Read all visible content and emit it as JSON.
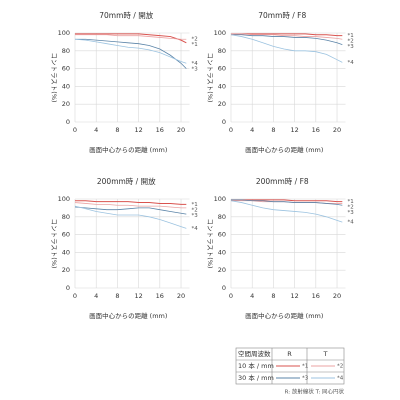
{
  "chart_data": [
    {
      "type": "line",
      "title": "70mm時 / 開放",
      "xlabel": "画面中心からの距離 (mm)",
      "ylabel": "コントラスト(%)",
      "x": [
        0,
        2,
        4,
        6,
        8,
        10,
        12,
        14,
        16,
        18,
        20,
        21
      ],
      "series": [
        {
          "name": "*1",
          "color": "#d9534f",
          "values": [
            99,
            99,
            99,
            99,
            99,
            99,
            99,
            98,
            97,
            96,
            92,
            89
          ]
        },
        {
          "name": "*2",
          "color": "#eba3a3",
          "values": [
            98,
            98,
            98,
            98,
            97,
            97,
            97,
            96,
            95,
            94,
            93,
            93
          ]
        },
        {
          "name": "*3",
          "color": "#5b84a8",
          "values": [
            93,
            93,
            92,
            91,
            90,
            89,
            88,
            86,
            82,
            75,
            66,
            60
          ]
        },
        {
          "name": "*4",
          "color": "#9cc3e0",
          "values": [
            93,
            92,
            90,
            88,
            86,
            84,
            83,
            81,
            78,
            73,
            68,
            66
          ]
        }
      ],
      "xlim": [
        0,
        21.6
      ],
      "ylim": [
        0,
        100
      ],
      "xticks": [
        0,
        4,
        8,
        12,
        16,
        20
      ],
      "yticks": [
        0,
        20,
        40,
        60,
        80,
        100
      ],
      "grid": true
    },
    {
      "type": "line",
      "title": "70mm時 / F8",
      "xlabel": "画面中心からの距離 (mm)",
      "ylabel": "コントラスト(%)",
      "x": [
        0,
        2,
        4,
        6,
        8,
        10,
        12,
        14,
        16,
        18,
        20,
        21
      ],
      "series": [
        {
          "name": "*1",
          "color": "#d9534f",
          "values": [
            99,
            99,
            99,
            99,
            99,
            99,
            99,
            99,
            98,
            98,
            97,
            97
          ]
        },
        {
          "name": "*2",
          "color": "#eba3a3",
          "values": [
            99,
            99,
            98,
            98,
            98,
            97,
            97,
            96,
            96,
            95,
            94,
            93
          ]
        },
        {
          "name": "*3",
          "color": "#5b84a8",
          "values": [
            98,
            98,
            97,
            97,
            96,
            96,
            95,
            95,
            94,
            92,
            89,
            87
          ]
        },
        {
          "name": "*4",
          "color": "#9cc3e0",
          "values": [
            98,
            96,
            93,
            89,
            85,
            82,
            80,
            80,
            79,
            76,
            70,
            67
          ]
        }
      ],
      "xlim": [
        0,
        21.6
      ],
      "ylim": [
        0,
        100
      ],
      "xticks": [
        0,
        4,
        8,
        12,
        16,
        20
      ],
      "yticks": [
        0,
        20,
        40,
        60,
        80,
        100
      ],
      "grid": true
    },
    {
      "type": "line",
      "title": "200mm時 / 開放",
      "xlabel": "画面中心からの距離 (mm)",
      "ylabel": "コントラスト(%)",
      "x": [
        0,
        2,
        4,
        6,
        8,
        10,
        12,
        14,
        16,
        18,
        20,
        21
      ],
      "series": [
        {
          "name": "*1",
          "color": "#d9534f",
          "values": [
            98,
            98,
            97,
            97,
            97,
            97,
            96,
            96,
            95,
            95,
            94,
            94
          ]
        },
        {
          "name": "*2",
          "color": "#eba3a3",
          "values": [
            96,
            95,
            94,
            94,
            93,
            93,
            92,
            92,
            92,
            91,
            90,
            90
          ]
        },
        {
          "name": "*3",
          "color": "#5b84a8",
          "values": [
            91,
            90,
            89,
            88,
            88,
            89,
            90,
            90,
            88,
            86,
            84,
            83
          ]
        },
        {
          "name": "*4",
          "color": "#9cc3e0",
          "values": [
            92,
            89,
            86,
            84,
            82,
            82,
            82,
            80,
            77,
            73,
            69,
            67
          ]
        }
      ],
      "xlim": [
        0,
        21.6
      ],
      "ylim": [
        0,
        100
      ],
      "xticks": [
        0,
        4,
        8,
        12,
        16,
        20
      ],
      "yticks": [
        0,
        20,
        40,
        60,
        80,
        100
      ],
      "grid": true
    },
    {
      "type": "line",
      "title": "200mm時 / F8",
      "xlabel": "画面中心からの距離 (mm)",
      "ylabel": "コントラスト(%)",
      "x": [
        0,
        2,
        4,
        6,
        8,
        10,
        12,
        14,
        16,
        18,
        20,
        21
      ],
      "series": [
        {
          "name": "*1",
          "color": "#d9534f",
          "values": [
            99,
            99,
            99,
            99,
            99,
            99,
            98,
            98,
            98,
            98,
            97,
            97
          ]
        },
        {
          "name": "*2",
          "color": "#eba3a3",
          "values": [
            98,
            98,
            98,
            97,
            97,
            97,
            96,
            96,
            96,
            95,
            95,
            95
          ]
        },
        {
          "name": "*3",
          "color": "#5b84a8",
          "values": [
            99,
            99,
            98,
            98,
            97,
            97,
            96,
            96,
            96,
            95,
            94,
            93
          ]
        },
        {
          "name": "*4",
          "color": "#9cc3e0",
          "values": [
            98,
            96,
            93,
            90,
            88,
            87,
            86,
            85,
            83,
            80,
            76,
            74
          ]
        }
      ],
      "xlim": [
        0,
        21.6
      ],
      "ylim": [
        0,
        100
      ],
      "xticks": [
        0,
        4,
        8,
        12,
        16,
        20
      ],
      "yticks": [
        0,
        20,
        40,
        60,
        80,
        100
      ],
      "grid": true
    }
  ],
  "legend_table": {
    "header": [
      "空間周波数",
      "R",
      "T"
    ],
    "rows": [
      {
        "label": "10 本 / mm",
        "cells": [
          "*1",
          "*2"
        ]
      },
      {
        "label": "30 本 / mm",
        "cells": [
          "*3",
          "*4"
        ]
      }
    ],
    "note": "R: 放射線状  T: 同心円状"
  }
}
